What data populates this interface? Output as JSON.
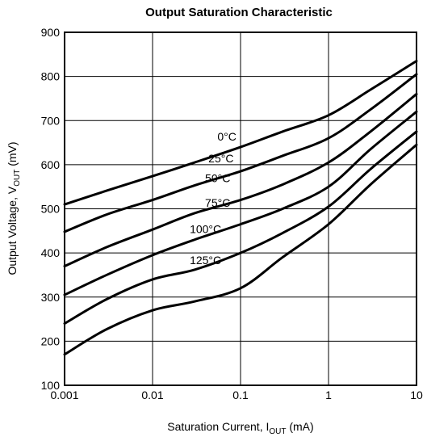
{
  "chart_data": {
    "type": "line",
    "title": "Output Saturation Characteristic",
    "xlabel": {
      "main": "Saturation Current, I",
      "sub": "OUT",
      "unit": " (mA)"
    },
    "ylabel": {
      "main": "Output Voltage, V",
      "sub": "OUT",
      "unit": " (mV)"
    },
    "x_scale": "log",
    "xlim": [
      0.001,
      10
    ],
    "ylim": [
      100,
      900
    ],
    "grid": true,
    "x_ticks": [
      {
        "value": 0.001,
        "label": "0.001"
      },
      {
        "value": 0.01,
        "label": "0.01"
      },
      {
        "value": 0.1,
        "label": "0.1"
      },
      {
        "value": 1,
        "label": "1"
      },
      {
        "value": 10,
        "label": "10"
      }
    ],
    "y_ticks": [
      {
        "value": 100,
        "label": "100"
      },
      {
        "value": 200,
        "label": "200"
      },
      {
        "value": 300,
        "label": "300"
      },
      {
        "value": 400,
        "label": "400"
      },
      {
        "value": 500,
        "label": "500"
      },
      {
        "value": 600,
        "label": "600"
      },
      {
        "value": 700,
        "label": "700"
      },
      {
        "value": 800,
        "label": "800"
      },
      {
        "value": 900,
        "label": "900"
      }
    ],
    "series": [
      {
        "name": "0°C",
        "label_at": {
          "x": 0.07,
          "y": 655
        },
        "points": [
          [
            0.001,
            510
          ],
          [
            0.003,
            541
          ],
          [
            0.01,
            574
          ],
          [
            0.03,
            605
          ],
          [
            0.1,
            640
          ],
          [
            0.3,
            675
          ],
          [
            1,
            712
          ],
          [
            3,
            770
          ],
          [
            10,
            835
          ]
        ]
      },
      {
        "name": "25°C",
        "label_at": {
          "x": 0.06,
          "y": 605
        },
        "points": [
          [
            0.001,
            448
          ],
          [
            0.003,
            487
          ],
          [
            0.01,
            520
          ],
          [
            0.03,
            553
          ],
          [
            0.1,
            585
          ],
          [
            0.3,
            620
          ],
          [
            1,
            660
          ],
          [
            3,
            725
          ],
          [
            10,
            805
          ]
        ]
      },
      {
        "name": "50°C",
        "label_at": {
          "x": 0.055,
          "y": 560
        },
        "points": [
          [
            0.001,
            370
          ],
          [
            0.003,
            413
          ],
          [
            0.01,
            453
          ],
          [
            0.03,
            490
          ],
          [
            0.1,
            520
          ],
          [
            0.3,
            555
          ],
          [
            1,
            605
          ],
          [
            3,
            675
          ],
          [
            10,
            760
          ]
        ]
      },
      {
        "name": "75°C",
        "label_at": {
          "x": 0.055,
          "y": 505
        },
        "points": [
          [
            0.001,
            305
          ],
          [
            0.003,
            350
          ],
          [
            0.01,
            395
          ],
          [
            0.03,
            430
          ],
          [
            0.1,
            465
          ],
          [
            0.3,
            500
          ],
          [
            1,
            550
          ],
          [
            3,
            635
          ],
          [
            10,
            720
          ]
        ]
      },
      {
        "name": "100°C",
        "label_at": {
          "x": 0.04,
          "y": 445
        },
        "points": [
          [
            0.001,
            240
          ],
          [
            0.003,
            295
          ],
          [
            0.01,
            340
          ],
          [
            0.03,
            362
          ],
          [
            0.1,
            400
          ],
          [
            0.3,
            445
          ],
          [
            1,
            505
          ],
          [
            3,
            590
          ],
          [
            10,
            675
          ]
        ]
      },
      {
        "name": "125°C",
        "label_at": {
          "x": 0.04,
          "y": 375
        },
        "points": [
          [
            0.001,
            170
          ],
          [
            0.003,
            227
          ],
          [
            0.01,
            270
          ],
          [
            0.03,
            290
          ],
          [
            0.1,
            320
          ],
          [
            0.3,
            390
          ],
          [
            1,
            465
          ],
          [
            3,
            555
          ],
          [
            10,
            645
          ]
        ]
      }
    ]
  }
}
